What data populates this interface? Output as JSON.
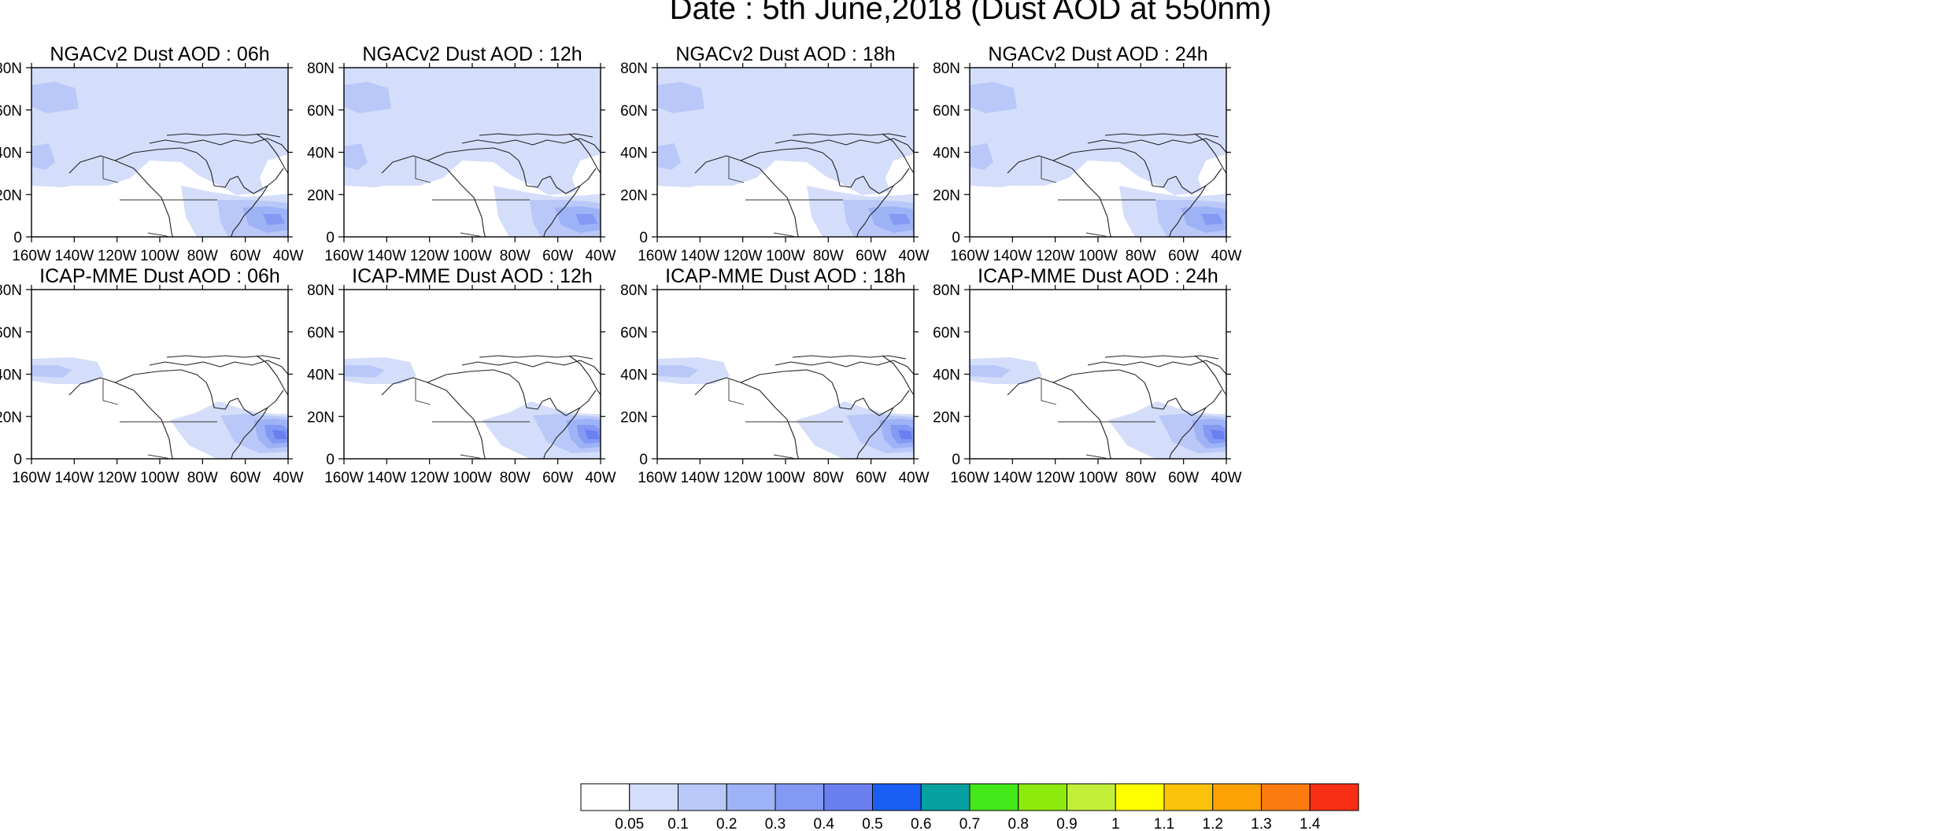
{
  "title": "Date : 5th June,2018 (Dust AOD at 550nm)",
  "map_extent": {
    "lon": [
      -160,
      -40
    ],
    "lat": [
      0,
      80
    ]
  },
  "x_ticks": [
    "160W",
    "140W",
    "120W",
    "100W",
    "80W",
    "60W",
    "40W"
  ],
  "y_ticks": [
    "0",
    "20N",
    "40N",
    "60N",
    "80N"
  ],
  "panels": [
    {
      "title": "NGACv2 Dust AOD : 06h",
      "model": "NGACv2",
      "hour": "06h"
    },
    {
      "title": "NGACv2 Dust AOD : 12h",
      "model": "NGACv2",
      "hour": "12h"
    },
    {
      "title": "NGACv2 Dust AOD : 18h",
      "model": "NGACv2",
      "hour": "18h"
    },
    {
      "title": "NGACv2 Dust AOD : 24h",
      "model": "NGACv2",
      "hour": "24h"
    },
    {
      "title": "ICAP-MME Dust AOD : 06h",
      "model": "ICAP-MME",
      "hour": "06h"
    },
    {
      "title": "ICAP-MME Dust AOD : 12h",
      "model": "ICAP-MME",
      "hour": "12h"
    },
    {
      "title": "ICAP-MME Dust AOD : 18h",
      "model": "ICAP-MME",
      "hour": "18h"
    },
    {
      "title": "ICAP-MME Dust AOD : 24h",
      "model": "ICAP-MME",
      "hour": "24h"
    }
  ],
  "colorbar": {
    "labels": [
      "0.05",
      "0.1",
      "0.2",
      "0.3",
      "0.4",
      "0.5",
      "0.6",
      "0.7",
      "0.8",
      "0.9",
      "1",
      "1.1",
      "1.2",
      "1.3",
      "1.4"
    ],
    "colors": [
      "#ffffff",
      "#d4defa",
      "#b9c8f8",
      "#9eb2f6",
      "#8399f3",
      "#6a7ff0",
      "#1a5ff5",
      "#06a0a0",
      "#44e81a",
      "#8ceb0c",
      "#c2f038",
      "#ffff00",
      "#fcc30a",
      "#fda205",
      "#fb7b10",
      "#f82e15"
    ]
  },
  "level_colors": {
    "l1": "#d4defa",
    "l2": "#b9c8f8",
    "l3": "#9eb2f6",
    "l4": "#8399f3",
    "l5": "#6a7ff0"
  }
}
